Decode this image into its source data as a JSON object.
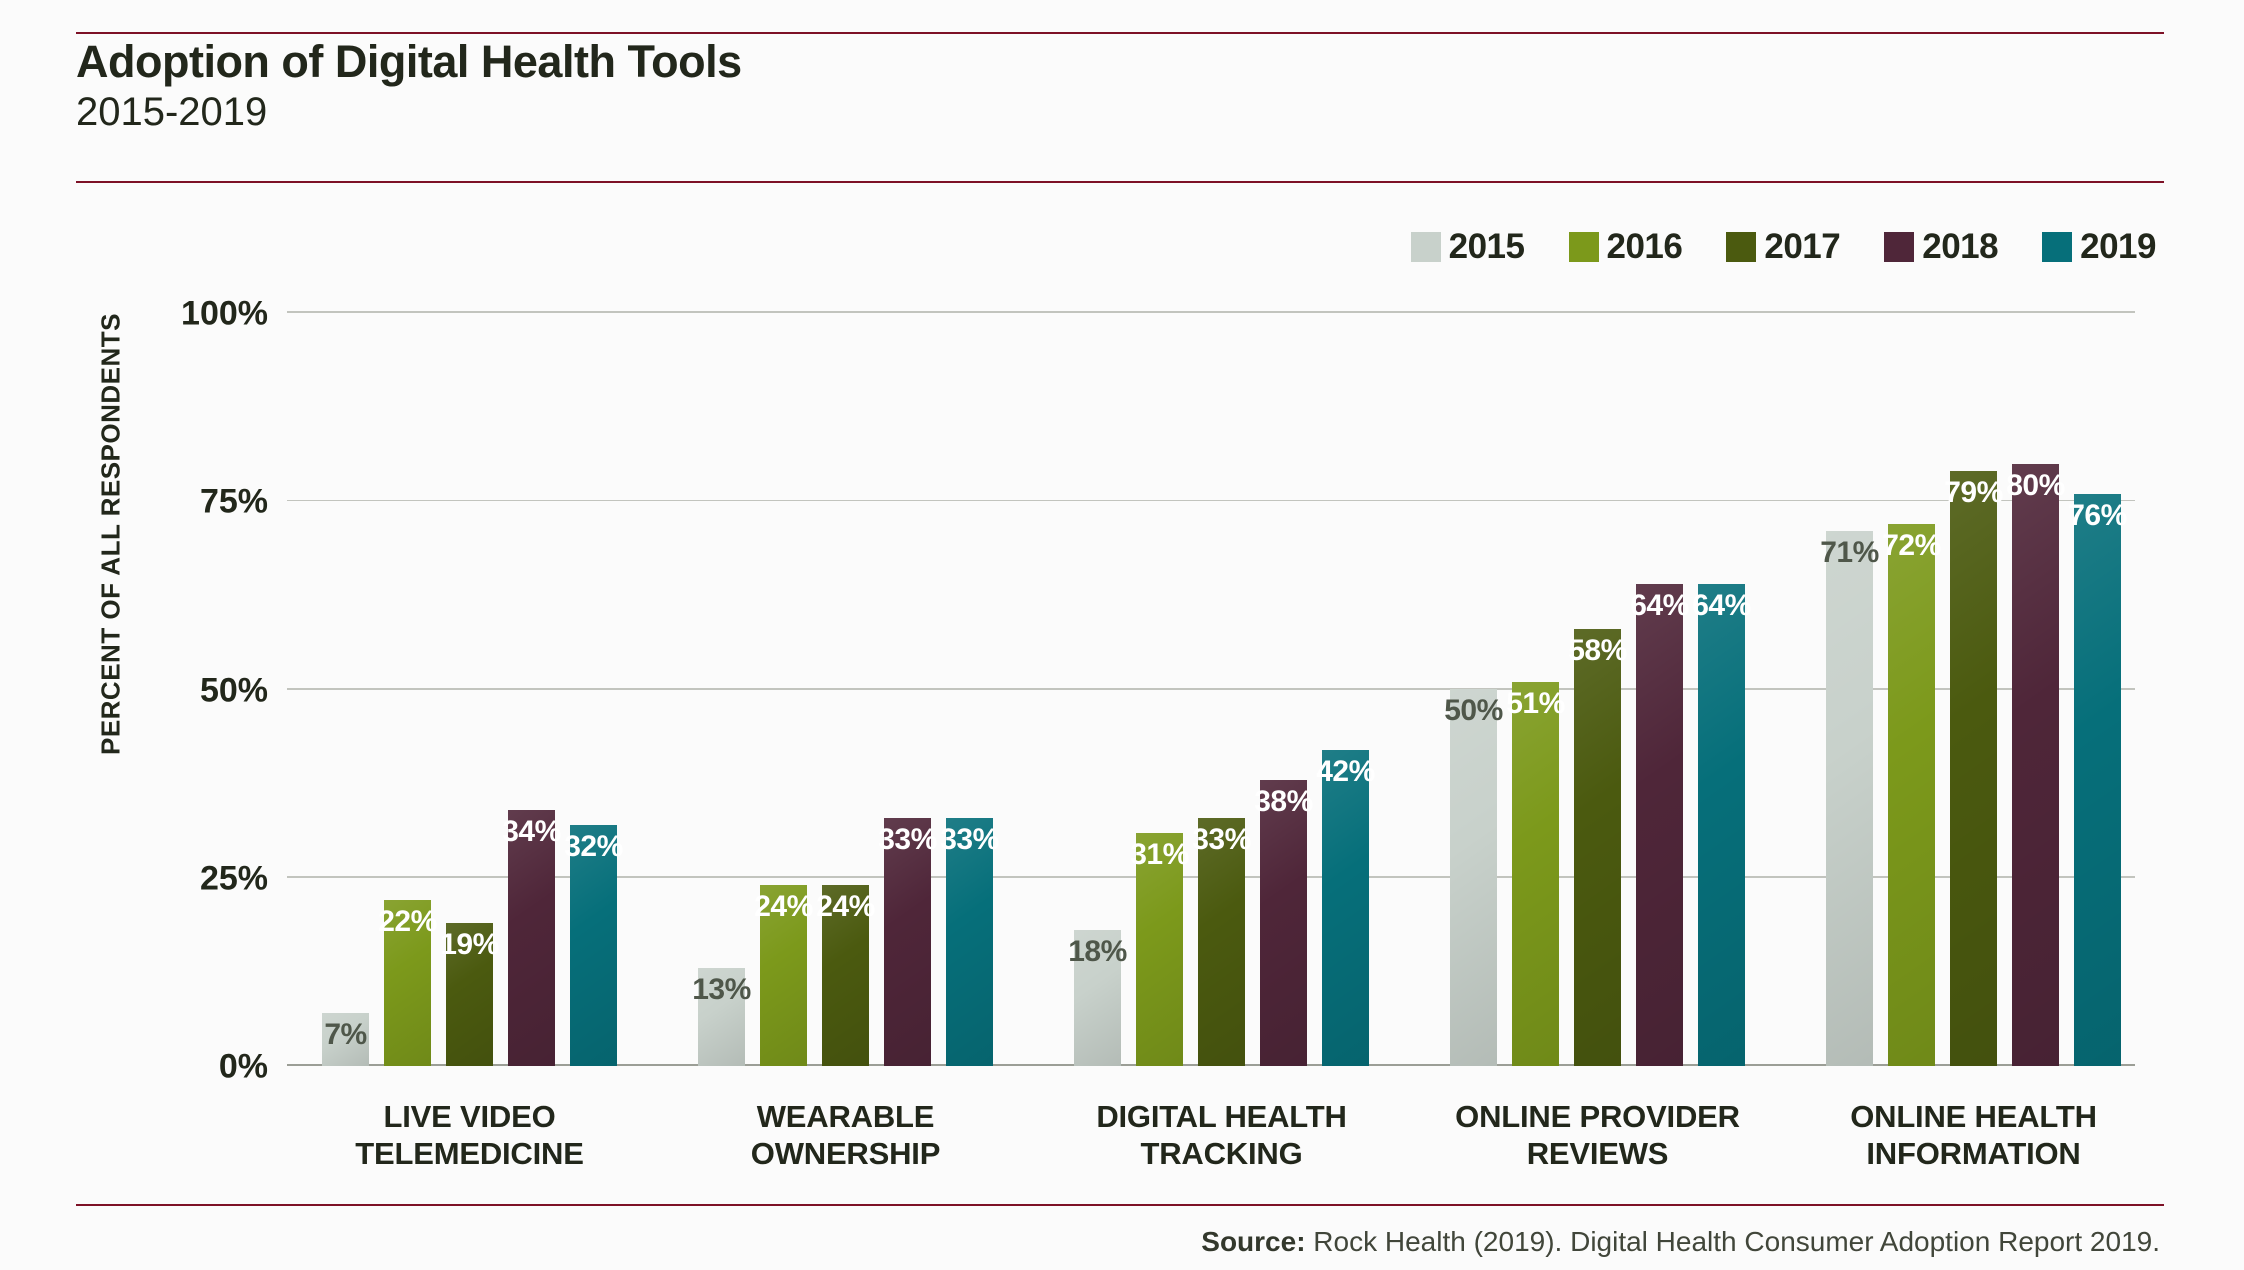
{
  "page": {
    "title": "Adoption of Digital Health Tools",
    "subtitle": "2015-2019",
    "accent_rule_color": "#7d1126",
    "background_color": "#fbfbfb",
    "source_label": "Source:",
    "source_text": " Rock Health (2019). Digital Health Consumer Adoption Report 2019."
  },
  "chart_data": {
    "type": "bar",
    "title": "Adoption of Digital Health Tools",
    "subtitle": "2015-2019",
    "xlabel": "",
    "ylabel": "PERCENT OF ALL RESPONDENTS",
    "ylim": [
      0,
      100
    ],
    "grid": true,
    "legend_position": "top-right",
    "value_suffix": "%",
    "yticks": [
      {
        "value": 0,
        "label": "0%"
      },
      {
        "value": 25,
        "label": "25%"
      },
      {
        "value": 50,
        "label": "50%"
      },
      {
        "value": 75,
        "label": "75%"
      },
      {
        "value": 100,
        "label": "100%"
      }
    ],
    "categories": [
      {
        "lines": [
          "LIVE VIDEO",
          "TELEMEDICINE"
        ]
      },
      {
        "lines": [
          "WEARABLE",
          "OWNERSHIP"
        ]
      },
      {
        "lines": [
          "DIGITAL HEALTH",
          "TRACKING"
        ]
      },
      {
        "lines": [
          "ONLINE PROVIDER",
          "REVIEWS"
        ]
      },
      {
        "lines": [
          "ONLINE HEALTH",
          "INFORMATION"
        ]
      }
    ],
    "series": [
      {
        "name": "2015",
        "color": "#c8d1cb",
        "label_color": "#4f574a",
        "values": [
          7,
          13,
          18,
          50,
          71
        ]
      },
      {
        "name": "2016",
        "color": "#7c991b",
        "label_color": "#ffffff",
        "values": [
          22,
          24,
          31,
          51,
          72
        ]
      },
      {
        "name": "2017",
        "color": "#4b5a0f",
        "label_color": "#ffffff",
        "values": [
          19,
          24,
          33,
          58,
          79
        ]
      },
      {
        "name": "2018",
        "color": "#4f2639",
        "label_color": "#ffffff",
        "values": [
          34,
          33,
          38,
          64,
          80
        ]
      },
      {
        "name": "2019",
        "color": "#066f7a",
        "label_color": "#ffffff",
        "values": [
          32,
          33,
          42,
          64,
          76
        ]
      }
    ]
  }
}
